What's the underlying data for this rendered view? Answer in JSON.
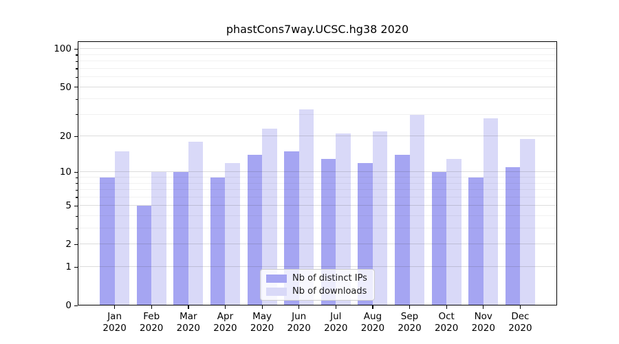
{
  "chart_data": {
    "type": "bar",
    "title": "phastCons7way.UCSC.hg38 2020",
    "categories": [
      "Jan",
      "Feb",
      "Mar",
      "Apr",
      "May",
      "Jun",
      "Jul",
      "Aug",
      "Sep",
      "Oct",
      "Nov",
      "Dec"
    ],
    "category_year": "2020",
    "series": [
      {
        "name": "Nb of distinct IPs",
        "color": "#a5a5f2",
        "values": [
          9,
          5,
          10,
          9,
          14,
          15,
          13,
          12,
          14,
          10,
          9,
          11
        ]
      },
      {
        "name": "Nb of downloads",
        "color": "#d9d9f8",
        "values": [
          15,
          10,
          18,
          12,
          23,
          33,
          21,
          22,
          30,
          13,
          28,
          19
        ]
      }
    ],
    "y_scale": "log10(1+x)",
    "y_major_ticks": [
      0,
      1,
      2,
      5,
      10,
      20,
      50,
      100
    ],
    "y_minor_ticks": [
      3,
      4,
      6,
      7,
      8,
      9,
      30,
      40,
      60,
      70,
      80,
      90
    ],
    "ylim": [
      0,
      115
    ],
    "grid": "major+minor",
    "legend_position": "lower center"
  },
  "legend": {
    "items": [
      "Nb of distinct IPs",
      "Nb of downloads"
    ]
  },
  "colors": {
    "grid_major": "rgba(60,60,60,0.18)",
    "grid_minor": "rgba(60,60,60,0.07)",
    "spine": "#000000",
    "background": "#ffffff"
  }
}
